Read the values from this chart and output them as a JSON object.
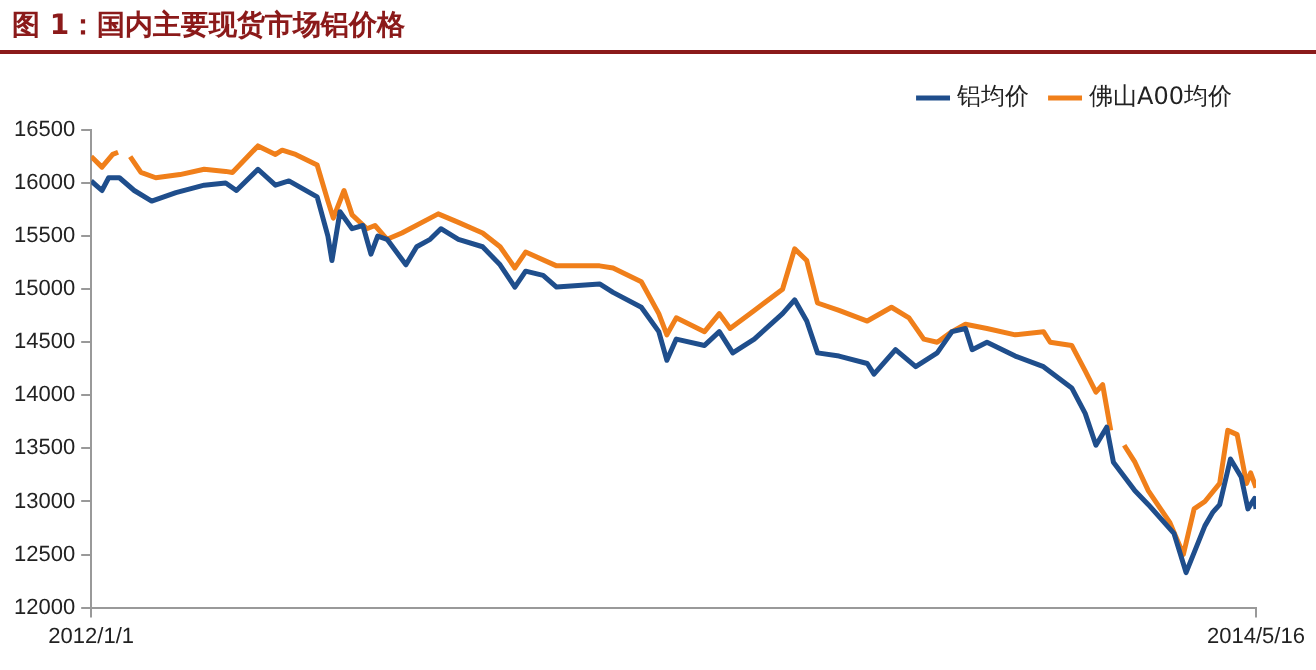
{
  "chart_data": {
    "type": "line",
    "title": "图 1：国内主要现货市场铝价格",
    "xlim": [
      "2012-01-01",
      "2014-05-16"
    ],
    "xticks": [
      {
        "value": "2012-01-01",
        "label": "2012/1/1"
      },
      {
        "value": "2014-05-16",
        "label": "2014/5/16"
      }
    ],
    "ylim": [
      12000,
      16500
    ],
    "yticks": [
      12000,
      12500,
      13000,
      13500,
      14000,
      14500,
      15000,
      15500,
      16000,
      16500
    ],
    "grid": false,
    "legend": "top",
    "marker": "none",
    "line_style": "solid",
    "series": [
      {
        "name": "铝均价",
        "color": "#1f4e8c",
        "x": [
          "2012-01-01",
          "2012-01-09",
          "2012-01-14",
          "2012-01-22",
          "2012-02-02",
          "2012-02-15",
          "2012-03-04",
          "2012-03-25",
          "2012-04-10",
          "2012-04-18",
          "2012-05-04",
          "2012-05-17",
          "2012-05-27",
          "2012-06-17",
          "2012-06-25",
          "2012-06-28",
          "2012-07-04",
          "2012-07-13",
          "2012-07-21",
          "2012-07-27",
          "2012-08-01",
          "2012-08-08",
          "2012-08-22",
          "2012-08-30",
          "2012-09-09",
          "2012-09-17",
          "2012-09-30",
          "2012-10-18",
          "2012-10-31",
          "2012-11-11",
          "2012-11-19",
          "2012-12-02",
          "2012-12-12",
          "2013-01-13",
          "2013-01-23",
          "2013-02-13",
          "2013-02-26",
          "2013-03-04",
          "2013-03-11",
          "2013-04-01",
          "2013-04-12",
          "2013-04-22",
          "2013-05-08",
          "2013-05-29",
          "2013-06-07",
          "2013-06-16",
          "2013-06-24",
          "2013-07-10",
          "2013-07-31",
          "2013-08-05",
          "2013-08-21",
          "2013-09-05",
          "2013-09-21",
          "2013-10-02",
          "2013-10-12",
          "2013-10-17",
          "2013-10-28",
          "2013-11-18",
          "2013-12-09",
          "2013-12-30",
          "2014-01-09",
          "2014-01-17",
          "2014-01-25",
          "2014-01-30",
          "2014-02-15",
          "2014-02-25",
          "2014-03-16",
          "2014-03-25",
          "2014-04-08",
          "2014-04-14",
          "2014-04-19",
          "2014-04-27",
          "2014-05-05",
          "2014-05-10",
          "2014-05-15",
          "2014-05-16"
        ],
        "values": [
          16020,
          15930,
          16050,
          16050,
          15930,
          15830,
          15910,
          15980,
          16000,
          15930,
          16130,
          15980,
          16020,
          15870,
          15500,
          15270,
          15730,
          15570,
          15600,
          15330,
          15500,
          15470,
          15230,
          15400,
          15470,
          15570,
          15470,
          15400,
          15230,
          15020,
          15170,
          15130,
          15020,
          15050,
          14970,
          14830,
          14600,
          14330,
          14530,
          14470,
          14600,
          14400,
          14530,
          14770,
          14900,
          14700,
          14400,
          14370,
          14300,
          14200,
          14430,
          14270,
          14400,
          14600,
          14630,
          14430,
          14500,
          14370,
          14270,
          14070,
          13830,
          13530,
          13700,
          13370,
          13100,
          12970,
          12700,
          12330,
          12770,
          12900,
          12970,
          13400,
          13230,
          12930,
          13030,
          12930
        ]
      },
      {
        "name": "佛山A00均价",
        "color": "#f07f1a",
        "x": [
          "2012-01-01",
          "2012-01-09",
          "2012-01-17",
          "2012-01-21",
          "2012-01-25",
          "2012-01-30",
          "2012-02-07",
          "2012-02-18",
          "2012-03-07",
          "2012-03-25",
          "2012-04-10",
          "2012-04-15",
          "2012-05-04",
          "2012-05-17",
          "2012-05-22",
          "2012-06-01",
          "2012-06-17",
          "2012-06-25",
          "2012-06-29",
          "2012-07-07",
          "2012-07-13",
          "2012-07-24",
          "2012-07-30",
          "2012-08-08",
          "2012-08-19",
          "2012-09-09",
          "2012-09-15",
          "2012-09-30",
          "2012-10-18",
          "2012-10-31",
          "2012-11-11",
          "2012-11-19",
          "2012-12-12",
          "2013-01-13",
          "2013-01-23",
          "2013-02-13",
          "2013-02-26",
          "2013-03-04",
          "2013-03-11",
          "2013-04-01",
          "2013-04-12",
          "2013-04-20",
          "2013-05-08",
          "2013-05-29",
          "2013-06-07",
          "2013-06-16",
          "2013-06-24",
          "2013-07-10",
          "2013-07-31",
          "2013-08-18",
          "2013-08-31",
          "2013-09-11",
          "2013-09-21",
          "2013-10-02",
          "2013-10-12",
          "2013-10-28",
          "2013-11-18",
          "2013-12-09",
          "2013-12-14",
          "2013-12-30",
          "2014-01-09",
          "2014-01-17",
          "2014-01-22",
          "2014-01-28",
          "2014-02-01",
          "2014-02-07",
          "2014-02-15",
          "2014-02-25",
          "2014-03-13",
          "2014-03-23",
          "2014-03-31",
          "2014-04-08",
          "2014-04-19",
          "2014-04-25",
          "2014-05-02",
          "2014-05-09",
          "2014-05-12",
          "2014-05-16"
        ],
        "values": [
          16250,
          16150,
          16270,
          16290,
          null,
          16250,
          16100,
          16050,
          16080,
          16130,
          16110,
          16100,
          16350,
          16270,
          16310,
          16270,
          16170,
          15830,
          15670,
          15930,
          15700,
          15570,
          15600,
          15470,
          15530,
          15670,
          15710,
          15630,
          15530,
          15400,
          15200,
          15350,
          15220,
          15220,
          15200,
          15070,
          14770,
          14570,
          14730,
          14600,
          14770,
          14630,
          14800,
          15000,
          15380,
          15270,
          14870,
          14800,
          14700,
          14830,
          14730,
          14530,
          14500,
          14600,
          14670,
          14630,
          14570,
          14600,
          14500,
          14470,
          14230,
          14030,
          14100,
          13670,
          null,
          13530,
          13370,
          13100,
          12800,
          12500,
          12930,
          13000,
          13170,
          13670,
          13630,
          13170,
          13270,
          13130
        ]
      }
    ]
  }
}
